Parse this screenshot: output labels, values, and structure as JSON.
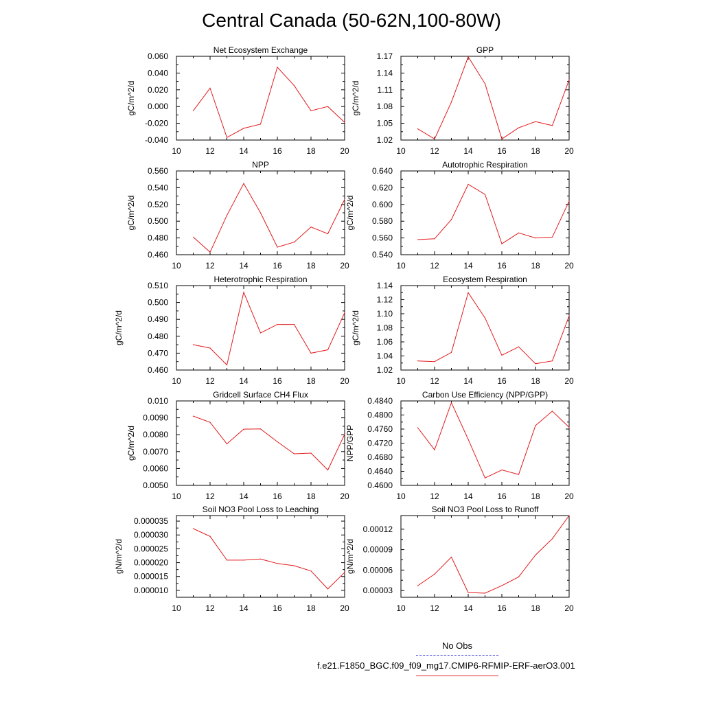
{
  "page": {
    "title": "Central Canada (50-62N,100-80W)",
    "legend_obs": "No Obs",
    "legend_case": "f.e21.F1850_BGC.f09_f09_mg17.CMIP6-RFMIP-ERF-aerO3.001",
    "colors": {
      "series": "#e31a1c",
      "obs": "#5555dd",
      "axes": "#000000"
    }
  },
  "chart_data": [
    {
      "type": "line",
      "title": "Net Ecosystem Exchange",
      "ylabel": "gC/m^2/d",
      "x": [
        11,
        12,
        13,
        14,
        15,
        16,
        17,
        18,
        19,
        20
      ],
      "values": [
        -0.005,
        0.022,
        -0.037,
        -0.026,
        -0.021,
        0.047,
        0.025,
        -0.005,
        0.0,
        -0.019
      ],
      "xlim": [
        10,
        20
      ],
      "ylim": [
        -0.04,
        0.06
      ],
      "xticks": [
        "10",
        "12",
        "14",
        "16",
        "18",
        "20"
      ],
      "yticks": [
        "-0.040",
        "-0.020",
        "0.000",
        "0.020",
        "0.040",
        "0.060"
      ]
    },
    {
      "type": "line",
      "title": "GPP",
      "ylabel": "gC/m^2/d",
      "x": [
        11,
        12,
        13,
        14,
        15,
        16,
        17,
        18,
        19,
        20
      ],
      "values": [
        1.04,
        1.022,
        1.088,
        1.169,
        1.121,
        1.022,
        1.042,
        1.053,
        1.046,
        1.128
      ],
      "xlim": [
        10,
        20
      ],
      "ylim": [
        1.02,
        1.17
      ],
      "xticks": [
        "10",
        "12",
        "14",
        "16",
        "18",
        "20"
      ],
      "yticks": [
        "1.02",
        "1.05",
        "1.08",
        "1.11",
        "1.14",
        "1.17"
      ]
    },
    {
      "type": "line",
      "title": "NPP",
      "ylabel": "gC/m^2/d",
      "x": [
        11,
        12,
        13,
        14,
        15,
        16,
        17,
        18,
        19,
        20
      ],
      "values": [
        0.481,
        0.463,
        0.507,
        0.545,
        0.51,
        0.469,
        0.475,
        0.493,
        0.485,
        0.526
      ],
      "xlim": [
        10,
        20
      ],
      "ylim": [
        0.46,
        0.56
      ],
      "xticks": [
        "10",
        "12",
        "14",
        "16",
        "18",
        "20"
      ],
      "yticks": [
        "0.460",
        "0.480",
        "0.500",
        "0.520",
        "0.540",
        "0.560"
      ]
    },
    {
      "type": "line",
      "title": "Autotrophic Respiration",
      "ylabel": "gC/m^2/d",
      "x": [
        11,
        12,
        13,
        14,
        15,
        16,
        17,
        18,
        19,
        20
      ],
      "values": [
        0.558,
        0.559,
        0.582,
        0.624,
        0.612,
        0.553,
        0.566,
        0.56,
        0.561,
        0.604
      ],
      "xlim": [
        10,
        20
      ],
      "ylim": [
        0.54,
        0.64
      ],
      "xticks": [
        "10",
        "12",
        "14",
        "16",
        "18",
        "20"
      ],
      "yticks": [
        "0.540",
        "0.560",
        "0.580",
        "0.600",
        "0.620",
        "0.640"
      ]
    },
    {
      "type": "line",
      "title": "Heterotrophic Respiration",
      "ylabel": "gC/m^2/d",
      "x": [
        11,
        12,
        13,
        14,
        15,
        16,
        17,
        18,
        19,
        20
      ],
      "values": [
        0.475,
        0.473,
        0.463,
        0.506,
        0.482,
        0.487,
        0.487,
        0.47,
        0.472,
        0.494
      ],
      "xlim": [
        10,
        20
      ],
      "ylim": [
        0.46,
        0.51
      ],
      "xticks": [
        "10",
        "12",
        "14",
        "16",
        "18",
        "20"
      ],
      "yticks": [
        "0.460",
        "0.470",
        "0.480",
        "0.490",
        "0.500",
        "0.510"
      ]
    },
    {
      "type": "line",
      "title": "Ecosystem Respiration",
      "ylabel": "gC/m^2/d",
      "x": [
        11,
        12,
        13,
        14,
        15,
        16,
        17,
        18,
        19,
        20
      ],
      "values": [
        1.033,
        1.032,
        1.045,
        1.13,
        1.094,
        1.041,
        1.053,
        1.029,
        1.033,
        1.097
      ],
      "xlim": [
        10,
        20
      ],
      "ylim": [
        1.02,
        1.14
      ],
      "xticks": [
        "10",
        "12",
        "14",
        "16",
        "18",
        "20"
      ],
      "yticks": [
        "1.02",
        "1.04",
        "1.06",
        "1.08",
        "1.10",
        "1.12",
        "1.14"
      ]
    },
    {
      "type": "line",
      "title": "Gridcell Surface CH4 Flux",
      "ylabel": "gC/m^2/d",
      "x": [
        11,
        12,
        13,
        14,
        15,
        16,
        17,
        18,
        19,
        20
      ],
      "values": [
        0.0091,
        0.00873,
        0.00746,
        0.00833,
        0.00834,
        0.00758,
        0.00687,
        0.00691,
        0.00591,
        0.00802
      ],
      "xlim": [
        10,
        20
      ],
      "ylim": [
        0.005,
        0.01
      ],
      "xticks": [
        "10",
        "12",
        "14",
        "16",
        "18",
        "20"
      ],
      "yticks": [
        "0.0050",
        "0.0060",
        "0.0070",
        "0.0080",
        "0.0090",
        "0.010"
      ]
    },
    {
      "type": "line",
      "title": "Carbon Use Efficiency (NPP/GPP)",
      "ylabel": "NPP/GPP",
      "x": [
        11,
        12,
        13,
        14,
        15,
        16,
        17,
        18,
        19,
        20
      ],
      "values": [
        0.4764,
        0.4701,
        0.4835,
        0.4731,
        0.4621,
        0.4644,
        0.4631,
        0.477,
        0.4811,
        0.4765
      ],
      "xlim": [
        10,
        20
      ],
      "ylim": [
        0.46,
        0.484
      ],
      "xticks": [
        "10",
        "12",
        "14",
        "16",
        "18",
        "20"
      ],
      "yticks": [
        "0.4600",
        "0.4640",
        "0.4680",
        "0.4720",
        "0.4760",
        "0.4800",
        "0.4840"
      ]
    },
    {
      "type": "line",
      "title": "Soil NO3 Pool Loss to Leaching",
      "ylabel": "gN/m^2/d",
      "x": [
        11,
        12,
        13,
        14,
        15,
        16,
        17,
        18,
        19,
        20
      ],
      "values": [
        3.23e-05,
        2.95e-05,
        2.09e-05,
        2.09e-05,
        2.13e-05,
        1.97e-05,
        1.89e-05,
        1.7e-05,
        1.05e-05,
        1.65e-05
      ],
      "xlim": [
        10,
        20
      ],
      "ylim": [
        7.5e-06,
        3.7e-05
      ],
      "xticks": [
        "10",
        "12",
        "14",
        "16",
        "18",
        "20"
      ],
      "yticks": [
        "0.000010",
        "0.000015",
        "0.000020",
        "0.000025",
        "0.000030",
        "0.000035"
      ]
    },
    {
      "type": "line",
      "title": "Soil NO3 Pool Loss to Runoff",
      "ylabel": "gN/m^2/d",
      "x": [
        11,
        12,
        13,
        14,
        15,
        16,
        17,
        18,
        19,
        20
      ],
      "values": [
        3.7e-05,
        5.4e-05,
        7.9e-05,
        2.7e-05,
        2.6e-05,
        3.7e-05,
        5e-05,
        8.2e-05,
        0.000106,
        0.00014
      ],
      "xlim": [
        10,
        20
      ],
      "ylim": [
        2e-05,
        0.00014
      ],
      "xticks": [
        "10",
        "12",
        "14",
        "16",
        "18",
        "20"
      ],
      "yticks": [
        "0.00003",
        "0.00006",
        "0.00009",
        "0.00012"
      ]
    }
  ]
}
